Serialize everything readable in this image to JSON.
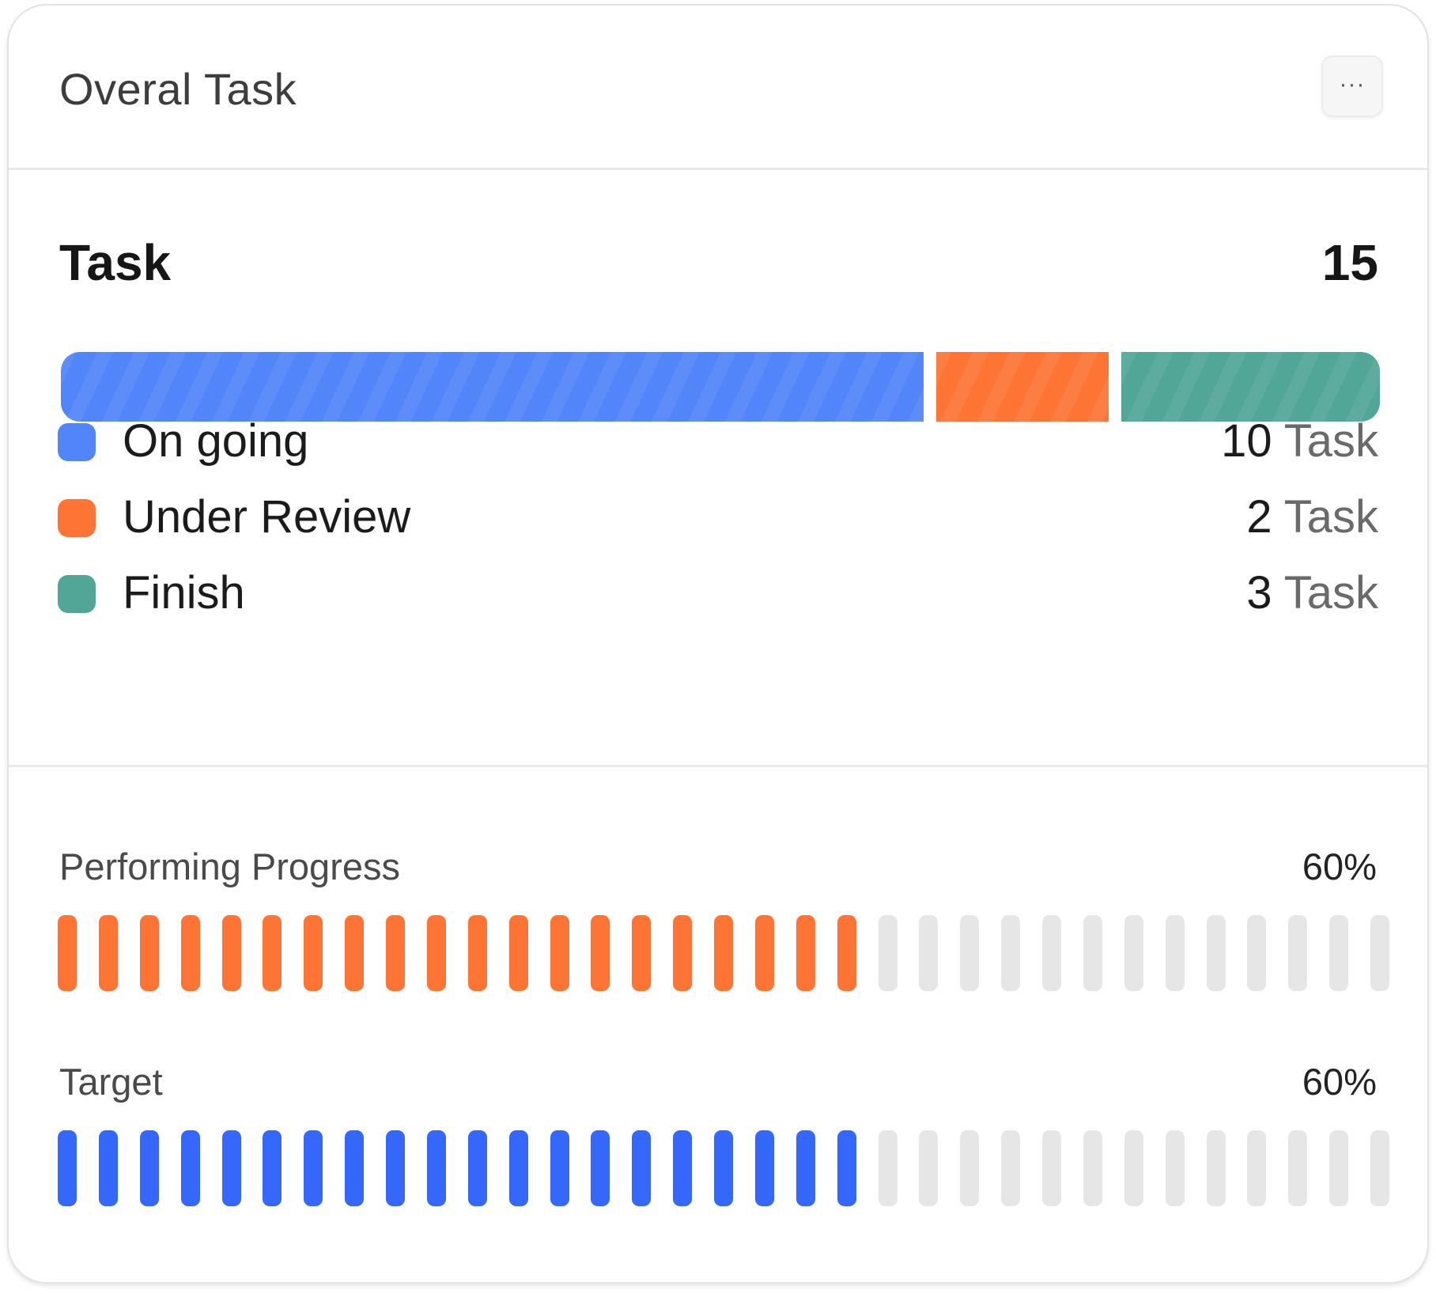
{
  "card": {
    "title": "Overal Task",
    "more_label": "···"
  },
  "task": {
    "label": "Task",
    "total": "15",
    "stack": [
      {
        "name": "On going",
        "count": 10,
        "color": "#5284fa"
      },
      {
        "name": "Under Review",
        "count": 2,
        "color": "#fd7434"
      },
      {
        "name": "Finish",
        "count": 3,
        "color": "#52a698"
      }
    ],
    "legend": [
      {
        "label": "On going",
        "value": "10",
        "unit": "Task",
        "color": "#5284fa"
      },
      {
        "label": "Under Review",
        "value": "2",
        "unit": "Task",
        "color": "#fd7434"
      },
      {
        "label": "Finish",
        "value": "3",
        "unit": "Task",
        "color": "#52a698"
      }
    ]
  },
  "metrics": [
    {
      "label": "Performing Progress",
      "value": "60%",
      "fraction": 0.6,
      "total_ticks": 33,
      "color": "#fd7434",
      "empty_color": "#e6e6e6"
    },
    {
      "label": "Target",
      "value": "60%",
      "fraction": 0.6,
      "total_ticks": 33,
      "color": "#3467fa",
      "empty_color": "#e6e6e6"
    }
  ]
}
